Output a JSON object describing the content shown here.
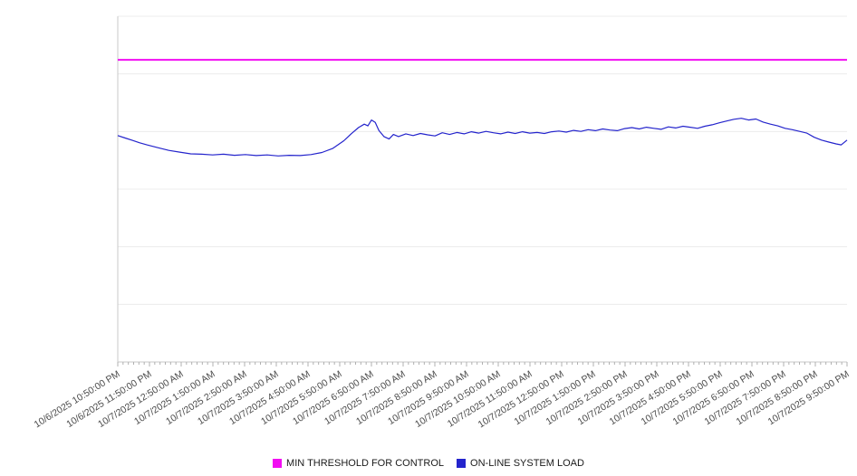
{
  "chart_data": {
    "type": "line",
    "title": "",
    "xlabel": "",
    "ylabel": "",
    "ylim": [
      0,
      1
    ],
    "grid": "horizontal",
    "legend_position": "bottom-center",
    "x_tick_labels": [
      "10/6/2025 10:50:00 PM",
      "10/6/2025 11:50:00 PM",
      "10/7/2025 12:50:00 AM",
      "10/7/2025 1:50:00 AM",
      "10/7/2025 2:50:00 AM",
      "10/7/2025 3:50:00 AM",
      "10/7/2025 4:50:00 AM",
      "10/7/2025 5:50:00 AM",
      "10/7/2025 6:50:00 AM",
      "10/7/2025 7:50:00 AM",
      "10/7/2025 8:50:00 AM",
      "10/7/2025 9:50:00 AM",
      "10/7/2025 10:50:00 AM",
      "10/7/2025 11:50:00 AM",
      "10/7/2025 12:50:00 PM",
      "10/7/2025 1:50:00 PM",
      "10/7/2025 2:50:00 PM",
      "10/7/2025 3:50:00 PM",
      "10/7/2025 4:50:00 PM",
      "10/7/2025 5:50:00 PM",
      "10/7/2025 6:50:00 PM",
      "10/7/2025 7:50:00 PM",
      "10/7/2025 8:50:00 PM",
      "10/7/2025 9:50:00 PM"
    ],
    "series": [
      {
        "name": "MIN THRESHOLD FOR CONTROL",
        "kind": "threshold",
        "color": "#f20df2",
        "value": 0.874
      },
      {
        "name": "ON-LINE SYSTEM LOAD",
        "kind": "line",
        "color": "#2424cc",
        "x": [
          0,
          0.01,
          0.02,
          0.03,
          0.04,
          0.055,
          0.07,
          0.085,
          0.1,
          0.115,
          0.13,
          0.145,
          0.16,
          0.175,
          0.19,
          0.205,
          0.22,
          0.235,
          0.25,
          0.265,
          0.28,
          0.295,
          0.31,
          0.32,
          0.33,
          0.338,
          0.343,
          0.348,
          0.353,
          0.358,
          0.365,
          0.372,
          0.378,
          0.385,
          0.395,
          0.405,
          0.415,
          0.425,
          0.435,
          0.445,
          0.455,
          0.465,
          0.475,
          0.485,
          0.495,
          0.505,
          0.515,
          0.525,
          0.535,
          0.545,
          0.555,
          0.565,
          0.575,
          0.585,
          0.595,
          0.605,
          0.615,
          0.625,
          0.635,
          0.645,
          0.655,
          0.665,
          0.675,
          0.685,
          0.695,
          0.705,
          0.715,
          0.725,
          0.735,
          0.745,
          0.755,
          0.765,
          0.775,
          0.785,
          0.795,
          0.805,
          0.815,
          0.825,
          0.835,
          0.845,
          0.855,
          0.865,
          0.875,
          0.885,
          0.895,
          0.905,
          0.915,
          0.925,
          0.935,
          0.945,
          0.955,
          0.965,
          0.975,
          0.985,
          0.992,
          1
        ],
        "y": [
          0.655,
          0.648,
          0.641,
          0.634,
          0.628,
          0.62,
          0.612,
          0.607,
          0.602,
          0.601,
          0.599,
          0.601,
          0.598,
          0.6,
          0.597,
          0.599,
          0.596,
          0.598,
          0.597,
          0.6,
          0.606,
          0.618,
          0.64,
          0.66,
          0.678,
          0.688,
          0.683,
          0.7,
          0.693,
          0.67,
          0.652,
          0.645,
          0.658,
          0.652,
          0.66,
          0.655,
          0.661,
          0.657,
          0.654,
          0.663,
          0.658,
          0.664,
          0.66,
          0.666,
          0.662,
          0.667,
          0.663,
          0.66,
          0.665,
          0.661,
          0.666,
          0.662,
          0.664,
          0.661,
          0.666,
          0.668,
          0.665,
          0.67,
          0.667,
          0.672,
          0.669,
          0.674,
          0.671,
          0.669,
          0.675,
          0.678,
          0.674,
          0.679,
          0.676,
          0.673,
          0.68,
          0.677,
          0.682,
          0.679,
          0.676,
          0.682,
          0.686,
          0.692,
          0.697,
          0.702,
          0.705,
          0.7,
          0.703,
          0.694,
          0.688,
          0.683,
          0.676,
          0.672,
          0.667,
          0.662,
          0.65,
          0.642,
          0.636,
          0.631,
          0.628,
          0.642
        ]
      }
    ],
    "colors": {
      "axis": "#c8c8c8",
      "grid": "#ececec",
      "tick": "#b0b0b0",
      "label_text": "#4a4a4a"
    }
  },
  "legend": {
    "items": [
      {
        "label": "MIN THRESHOLD FOR CONTROL",
        "color": "#f20df2"
      },
      {
        "label": "ON-LINE SYSTEM LOAD",
        "color": "#2424cc"
      }
    ]
  }
}
